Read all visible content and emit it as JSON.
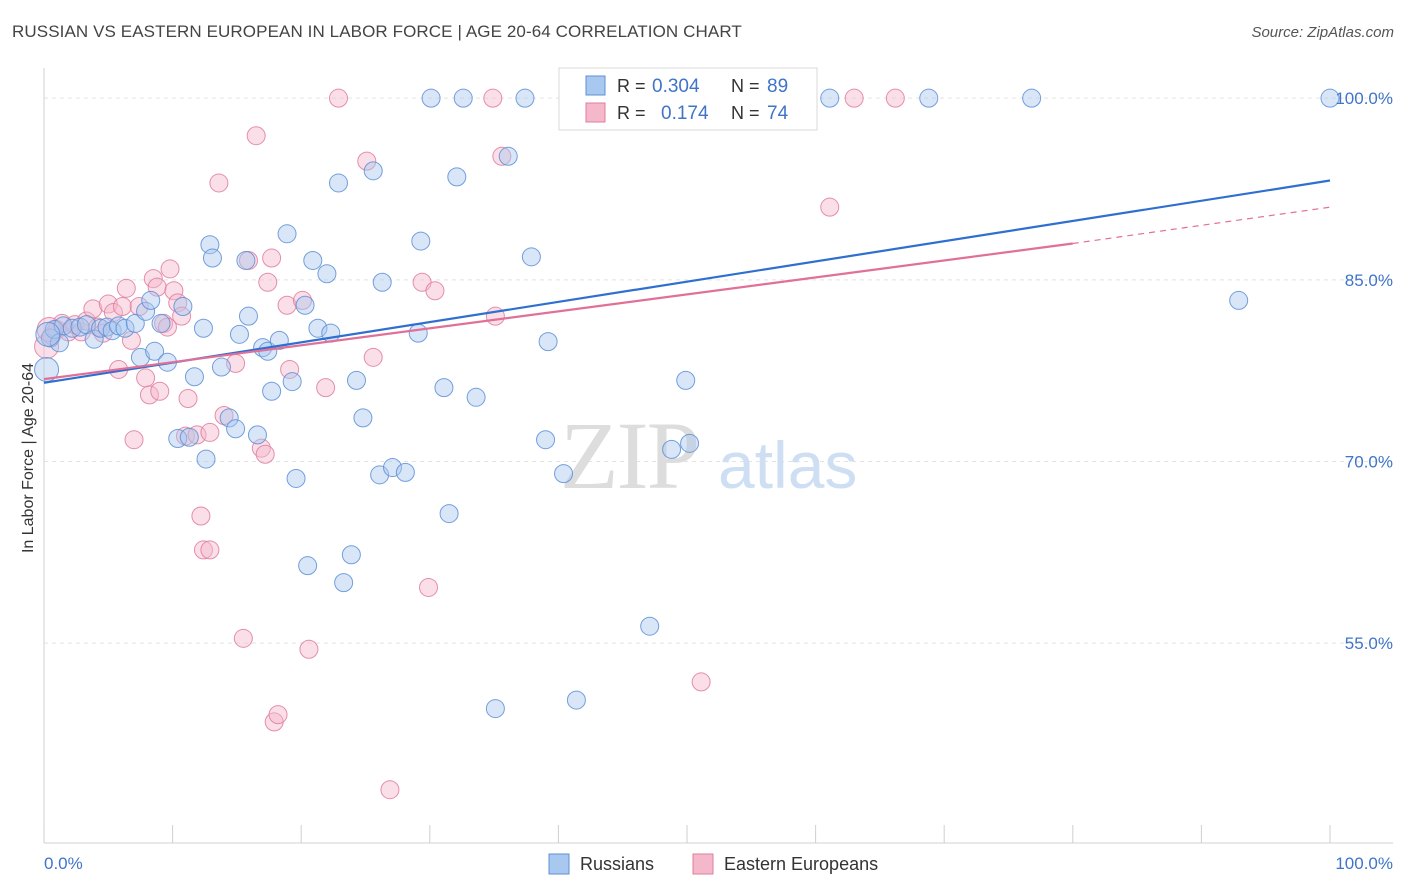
{
  "header": {
    "title": "RUSSIAN VS EASTERN EUROPEAN IN LABOR FORCE | AGE 20-64 CORRELATION CHART",
    "source": "Source: ZipAtlas.com"
  },
  "watermark": {
    "zip": "ZIP",
    "atlas": "atlas"
  },
  "colors": {
    "russians_fill": "#a9c8f0",
    "russians_stroke": "#5d8fd6",
    "russians_line": "#2f6fd0",
    "eastern_fill": "#f5b8cb",
    "eastern_stroke": "#e07c9e",
    "eastern_line": "#e07098",
    "value_text": "#3f74c9",
    "grid": "#e3e3e3"
  },
  "chart_data": {
    "type": "scatter",
    "title": "RUSSIAN VS EASTERN EUROPEAN IN LABOR FORCE | AGE 20-64 CORRELATION CHART",
    "xlabel": "",
    "ylabel": "In Labor Force | Age 20-64",
    "xlim": [
      0,
      100
    ],
    "ylim": [
      38.5,
      101.5
    ],
    "x_tick_labels": [
      "0.0%",
      "100.0%"
    ],
    "y_ticks": [
      55,
      70,
      85,
      100
    ],
    "y_tick_labels": [
      "55.0%",
      "70.0%",
      "85.0%",
      "100.0%"
    ],
    "grid": true,
    "legend": {
      "placement": "top-center",
      "rows": [
        {
          "r_label": "R =",
          "r_value": "0.304",
          "n_label": "N =",
          "n_value": "89"
        },
        {
          "r_label": "R =",
          "r_value": "0.174",
          "n_label": "N =",
          "n_value": "74"
        }
      ]
    },
    "bottom_legend": [
      "Russians",
      "Eastern Europeans"
    ],
    "series": [
      {
        "name": "Russians",
        "r": 0.304,
        "n": 89,
        "trend": {
          "x0": 0,
          "y0": 76.5,
          "x1": 100,
          "y1": 93.2
        },
        "points": [
          [
            0.2,
            77.6
          ],
          [
            0.5,
            80.2
          ],
          [
            0.8,
            80.9
          ],
          [
            1.2,
            79.8
          ],
          [
            1.5,
            81.2
          ],
          [
            2.2,
            81.0
          ],
          [
            2.8,
            81.1
          ],
          [
            3.3,
            81.3
          ],
          [
            3.9,
            80.1
          ],
          [
            4.4,
            81.0
          ],
          [
            4.9,
            81.1
          ],
          [
            5.3,
            80.8
          ],
          [
            5.8,
            81.2
          ],
          [
            6.3,
            81.0
          ],
          [
            7.1,
            81.4
          ],
          [
            7.5,
            78.6
          ],
          [
            7.9,
            82.4
          ],
          [
            8.3,
            83.3
          ],
          [
            8.6,
            79.1
          ],
          [
            9.1,
            81.4
          ],
          [
            9.6,
            78.2
          ],
          [
            10.4,
            71.9
          ],
          [
            10.8,
            82.8
          ],
          [
            11.3,
            72.0
          ],
          [
            11.7,
            77.0
          ],
          [
            12.4,
            81.0
          ],
          [
            12.6,
            70.2
          ],
          [
            12.9,
            87.9
          ],
          [
            13.1,
            86.8
          ],
          [
            13.8,
            77.8
          ],
          [
            14.4,
            73.6
          ],
          [
            14.9,
            72.7
          ],
          [
            15.2,
            80.5
          ],
          [
            15.7,
            86.6
          ],
          [
            15.9,
            82.0
          ],
          [
            16.6,
            72.2
          ],
          [
            17.0,
            79.4
          ],
          [
            17.4,
            79.1
          ],
          [
            17.7,
            75.8
          ],
          [
            18.3,
            80.0
          ],
          [
            18.9,
            88.8
          ],
          [
            19.3,
            76.6
          ],
          [
            19.6,
            68.6
          ],
          [
            20.3,
            82.9
          ],
          [
            20.5,
            61.4
          ],
          [
            20.9,
            86.6
          ],
          [
            21.3,
            81.0
          ],
          [
            22.0,
            85.5
          ],
          [
            22.3,
            80.6
          ],
          [
            22.9,
            93.0
          ],
          [
            23.3,
            60.0
          ],
          [
            23.9,
            62.3
          ],
          [
            24.3,
            76.7
          ],
          [
            24.8,
            73.6
          ],
          [
            25.6,
            94.0
          ],
          [
            26.1,
            68.9
          ],
          [
            26.3,
            84.8
          ],
          [
            27.1,
            69.5
          ],
          [
            28.1,
            69.1
          ],
          [
            29.1,
            80.6
          ],
          [
            29.3,
            88.2
          ],
          [
            30.1,
            100.0
          ],
          [
            31.1,
            76.1
          ],
          [
            31.5,
            65.7
          ],
          [
            32.1,
            93.5
          ],
          [
            32.6,
            100.0
          ],
          [
            33.6,
            75.3
          ],
          [
            35.1,
            49.6
          ],
          [
            36.1,
            95.2
          ],
          [
            37.4,
            100.0
          ],
          [
            37.9,
            86.9
          ],
          [
            39.0,
            71.8
          ],
          [
            39.2,
            79.9
          ],
          [
            40.4,
            69.0
          ],
          [
            41.4,
            50.3
          ],
          [
            44.1,
            100.0
          ],
          [
            47.1,
            56.4
          ],
          [
            48.8,
            71.0
          ],
          [
            49.9,
            76.7
          ],
          [
            50.2,
            71.5
          ],
          [
            52.1,
            100.0
          ],
          [
            55.1,
            100.0
          ],
          [
            59.1,
            100.0
          ],
          [
            61.1,
            100.0
          ],
          [
            68.8,
            100.0
          ],
          [
            76.8,
            100.0
          ],
          [
            92.9,
            83.3
          ],
          [
            100.0,
            100.0
          ],
          [
            0.3,
            80.5
          ]
        ]
      },
      {
        "name": "Eastern Europeans",
        "r": 0.174,
        "n": 74,
        "trend": {
          "x0": 0,
          "y0": 76.8,
          "x1": 80,
          "y1": 88.0,
          "dash_to_x": 100,
          "dash_to_y": 91.0
        },
        "points": [
          [
            0.2,
            79.5
          ],
          [
            0.6,
            80.4
          ],
          [
            1.0,
            80.9
          ],
          [
            1.4,
            81.4
          ],
          [
            1.9,
            80.7
          ],
          [
            2.4,
            81.3
          ],
          [
            2.9,
            80.7
          ],
          [
            3.3,
            81.6
          ],
          [
            3.8,
            82.6
          ],
          [
            4.2,
            81.1
          ],
          [
            4.6,
            80.6
          ],
          [
            5.0,
            83.0
          ],
          [
            5.4,
            82.3
          ],
          [
            5.8,
            77.6
          ],
          [
            6.1,
            82.8
          ],
          [
            6.4,
            84.3
          ],
          [
            6.8,
            80.0
          ],
          [
            7.0,
            71.8
          ],
          [
            7.4,
            82.8
          ],
          [
            7.9,
            76.9
          ],
          [
            8.2,
            75.5
          ],
          [
            8.5,
            85.1
          ],
          [
            8.8,
            84.4
          ],
          [
            9.0,
            75.8
          ],
          [
            9.3,
            81.4
          ],
          [
            9.6,
            81.1
          ],
          [
            9.8,
            85.9
          ],
          [
            10.1,
            84.1
          ],
          [
            10.4,
            83.1
          ],
          [
            10.7,
            82.0
          ],
          [
            11.0,
            72.1
          ],
          [
            11.2,
            75.2
          ],
          [
            11.9,
            72.2
          ],
          [
            12.2,
            65.5
          ],
          [
            12.4,
            62.7
          ],
          [
            12.9,
            62.7
          ],
          [
            12.9,
            72.4
          ],
          [
            13.6,
            93.0
          ],
          [
            14.0,
            73.8
          ],
          [
            14.9,
            78.1
          ],
          [
            15.5,
            55.4
          ],
          [
            15.9,
            86.6
          ],
          [
            16.5,
            96.9
          ],
          [
            16.9,
            71.1
          ],
          [
            17.2,
            70.6
          ],
          [
            17.4,
            84.8
          ],
          [
            17.7,
            86.8
          ],
          [
            17.9,
            48.5
          ],
          [
            18.2,
            49.1
          ],
          [
            18.9,
            82.9
          ],
          [
            19.1,
            77.6
          ],
          [
            20.1,
            83.3
          ],
          [
            20.6,
            54.5
          ],
          [
            21.9,
            76.1
          ],
          [
            22.9,
            100.0
          ],
          [
            25.1,
            94.8
          ],
          [
            25.6,
            78.6
          ],
          [
            26.9,
            42.9
          ],
          [
            29.4,
            84.8
          ],
          [
            29.9,
            59.6
          ],
          [
            30.4,
            84.1
          ],
          [
            34.9,
            100.0
          ],
          [
            35.1,
            82.0
          ],
          [
            35.6,
            95.2
          ],
          [
            44.9,
            100.0
          ],
          [
            47.1,
            100.0
          ],
          [
            49.1,
            100.0
          ],
          [
            51.1,
            51.8
          ],
          [
            53.1,
            100.0
          ],
          [
            58.9,
            100.0
          ],
          [
            61.1,
            91.0
          ],
          [
            63.0,
            100.0
          ],
          [
            66.2,
            100.0
          ],
          [
            0.4,
            80.9
          ]
        ]
      }
    ]
  }
}
